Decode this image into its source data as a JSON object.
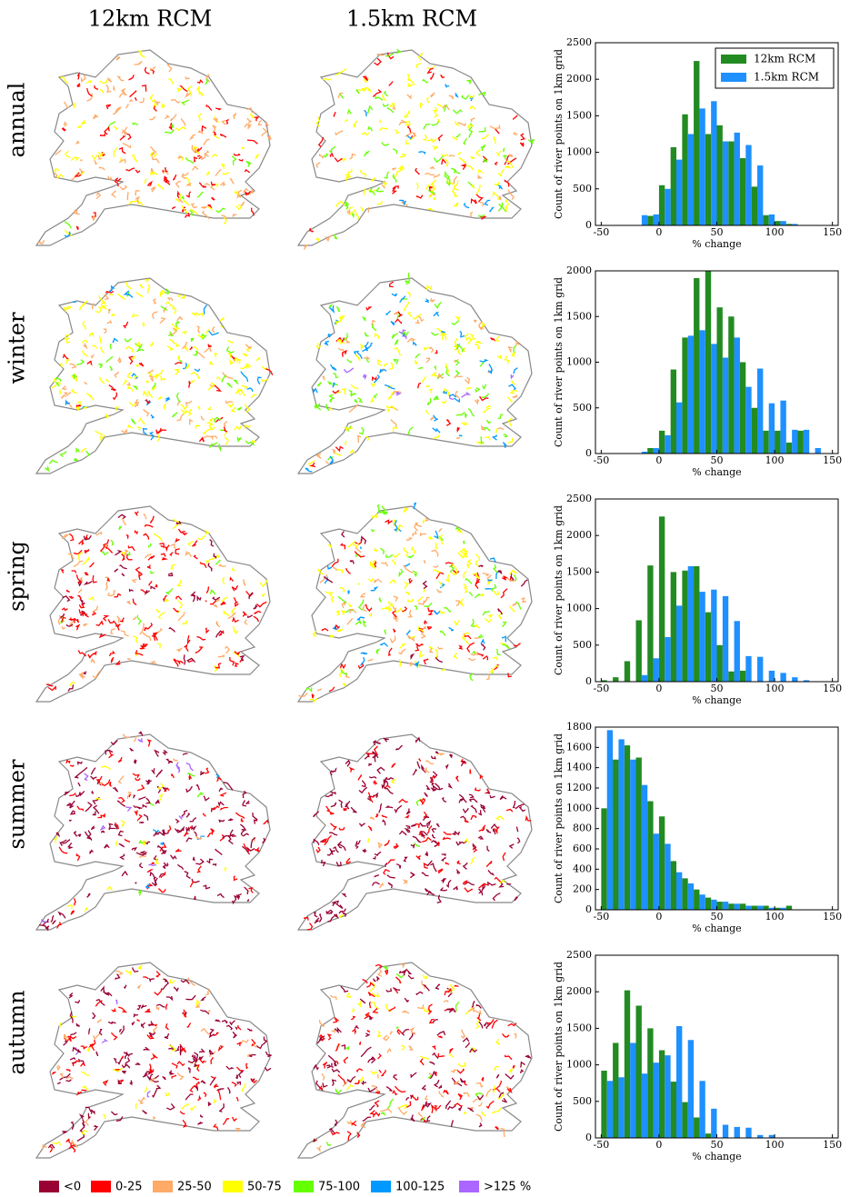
{
  "column_headers": [
    "12km RCM",
    "1.5km RCM"
  ],
  "map_legend": [
    {
      "label": "<0",
      "color": "#990033"
    },
    {
      "label": "0-25",
      "color": "#ff0000"
    },
    {
      "label": "25-50",
      "color": "#ffaa66"
    },
    {
      "label": "50-75",
      "color": "#ffff00"
    },
    {
      "label": "75-100",
      "color": "#66ff00"
    },
    {
      "label": "100-125",
      "color": "#0099ff"
    },
    {
      "label": ">125 %",
      "color": "#aa66ff"
    }
  ],
  "chart_data": [
    {
      "type": "histogram",
      "panel_label": "annual",
      "xlabel": "% change",
      "ylabel": "Count of river points on 1km grid",
      "legend": "upper right",
      "bins": [
        -50,
        -40,
        -30,
        -20,
        -10,
        0,
        10,
        20,
        30,
        40,
        50,
        60,
        70,
        80,
        90,
        100,
        110,
        120,
        130,
        140,
        150
      ],
      "series": [
        {
          "name": "12km RCM",
          "color": "#228b22",
          "values": [
            0,
            0,
            0,
            0,
            130,
            550,
            1070,
            1520,
            2250,
            1250,
            1370,
            1150,
            920,
            530,
            140,
            60,
            20,
            0,
            0,
            0
          ]
        },
        {
          "name": "1.5km RCM",
          "color": "#1e90ff",
          "values": [
            0,
            0,
            0,
            140,
            150,
            500,
            900,
            1250,
            1600,
            1700,
            1150,
            1270,
            1100,
            820,
            150,
            60,
            20,
            0,
            0,
            0
          ]
        }
      ],
      "xlim": [
        -55,
        155
      ],
      "xticks": [
        -50,
        0,
        50,
        100,
        150
      ],
      "ylim": [
        0,
        2500
      ],
      "yticks": [
        0,
        500,
        1000,
        1500,
        2000,
        2500
      ]
    },
    {
      "type": "histogram",
      "panel_label": "winter",
      "xlabel": "% change",
      "ylabel": "Count of river points on 1km grid",
      "bins": [
        -50,
        -40,
        -30,
        -20,
        -10,
        0,
        10,
        20,
        30,
        40,
        50,
        60,
        70,
        80,
        90,
        100,
        110,
        120,
        130,
        140,
        150
      ],
      "series": [
        {
          "name": "12km RCM",
          "color": "#228b22",
          "values": [
            0,
            0,
            0,
            0,
            60,
            250,
            920,
            1270,
            1920,
            2000,
            1600,
            1500,
            1000,
            500,
            250,
            250,
            120,
            250,
            0,
            0
          ]
        },
        {
          "name": "1.5km RCM",
          "color": "#1e90ff",
          "values": [
            0,
            0,
            0,
            20,
            60,
            200,
            560,
            1290,
            1350,
            1200,
            1050,
            1270,
            730,
            930,
            550,
            580,
            260,
            260,
            60,
            0
          ]
        }
      ],
      "xlim": [
        -55,
        155
      ],
      "xticks": [
        -50,
        0,
        50,
        100,
        150
      ],
      "ylim": [
        0,
        2000
      ],
      "yticks": [
        0,
        500,
        1000,
        1500,
        2000
      ]
    },
    {
      "type": "histogram",
      "panel_label": "spring",
      "xlabel": "% change",
      "ylabel": "Count of river points on 1km grid",
      "bins": [
        -50,
        -40,
        -30,
        -20,
        -10,
        0,
        10,
        20,
        30,
        40,
        50,
        60,
        70,
        80,
        90,
        100,
        110,
        120,
        130,
        140,
        150
      ],
      "series": [
        {
          "name": "12km RCM",
          "color": "#228b22",
          "values": [
            20,
            60,
            280,
            840,
            1590,
            2260,
            1500,
            1520,
            1580,
            950,
            500,
            140,
            150,
            0,
            0,
            0,
            0,
            0,
            0,
            0
          ]
        },
        {
          "name": "1.5km RCM",
          "color": "#1e90ff",
          "values": [
            0,
            0,
            0,
            90,
            320,
            610,
            1040,
            1580,
            1230,
            1260,
            1170,
            830,
            350,
            340,
            150,
            120,
            60,
            20,
            0,
            0
          ]
        }
      ],
      "xlim": [
        -55,
        155
      ],
      "xticks": [
        -50,
        0,
        50,
        100,
        150
      ],
      "ylim": [
        0,
        2500
      ],
      "yticks": [
        0,
        500,
        1000,
        1500,
        2000,
        2500
      ]
    },
    {
      "type": "histogram",
      "panel_label": "summer",
      "xlabel": "% change",
      "ylabel": "Count of river points on 1km grid",
      "bins": [
        -50,
        -40,
        -30,
        -20,
        -10,
        0,
        10,
        20,
        30,
        40,
        50,
        60,
        70,
        80,
        90,
        100,
        110,
        120,
        130,
        140,
        150
      ],
      "series": [
        {
          "name": "12km RCM",
          "color": "#228b22",
          "values": [
            1000,
            1480,
            1620,
            1500,
            1070,
            920,
            480,
            310,
            200,
            120,
            80,
            60,
            60,
            40,
            40,
            20,
            40,
            0,
            0,
            0
          ]
        },
        {
          "name": "1.5km RCM",
          "color": "#1e90ff",
          "values": [
            1770,
            1680,
            1480,
            1230,
            750,
            650,
            370,
            260,
            150,
            100,
            80,
            60,
            40,
            40,
            20,
            20,
            0,
            0,
            0,
            0
          ]
        }
      ],
      "xlim": [
        -55,
        155
      ],
      "xticks": [
        -50,
        0,
        50,
        100,
        150
      ],
      "ylim": [
        0,
        1800
      ],
      "yticks": [
        0,
        200,
        400,
        600,
        800,
        1000,
        1200,
        1400,
        1600,
        1800
      ]
    },
    {
      "type": "histogram",
      "panel_label": "autumn",
      "xlabel": "% change",
      "ylabel": "Count of river points on 1km grid",
      "bins": [
        -50,
        -40,
        -30,
        -20,
        -10,
        0,
        10,
        20,
        30,
        40,
        50,
        60,
        70,
        80,
        90,
        100,
        110,
        120,
        130,
        140,
        150
      ],
      "series": [
        {
          "name": "12km RCM",
          "color": "#228b22",
          "values": [
            920,
            1300,
            2020,
            1810,
            1500,
            1200,
            770,
            490,
            280,
            60,
            0,
            0,
            0,
            0,
            0,
            0,
            0,
            0,
            0,
            0
          ]
        },
        {
          "name": "1.5km RCM",
          "color": "#1e90ff",
          "values": [
            780,
            830,
            1300,
            880,
            1030,
            1130,
            1530,
            1340,
            780,
            400,
            180,
            150,
            140,
            40,
            40,
            0,
            0,
            0,
            0,
            0
          ]
        }
      ],
      "xlim": [
        -55,
        155
      ],
      "xticks": [
        -50,
        0,
        50,
        100,
        150
      ],
      "ylim": [
        0,
        2500
      ],
      "yticks": [
        0,
        500,
        1000,
        1500,
        2000,
        2500
      ]
    }
  ]
}
